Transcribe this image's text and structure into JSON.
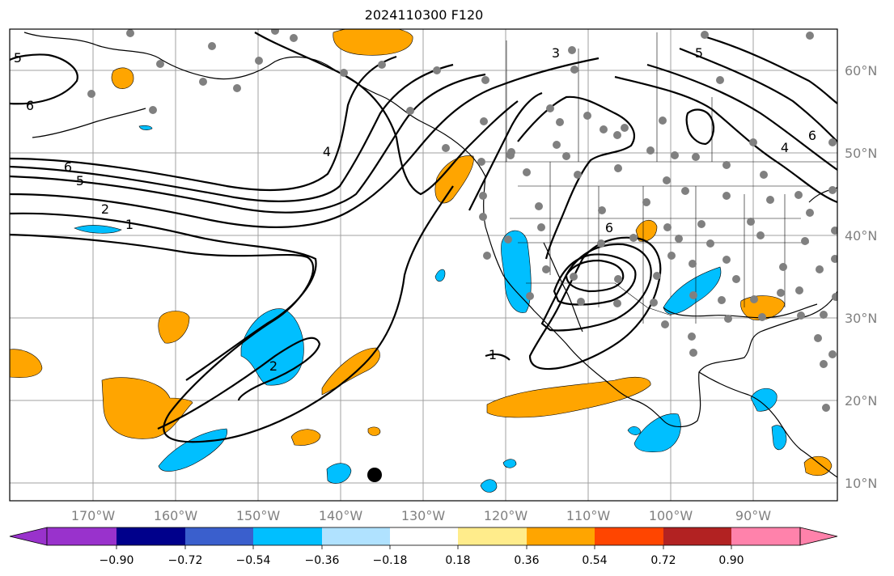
{
  "title": "2024110300 F120",
  "map": {
    "lat_labels": [
      "60°N",
      "50°N",
      "40°N",
      "30°N",
      "20°N",
      "10°N"
    ],
    "lon_labels": [
      "170°W",
      "160°W",
      "150°W",
      "140°W",
      "130°W",
      "120°W",
      "110°W",
      "100°W",
      "90°W"
    ],
    "contour_labels": [
      "5",
      "6",
      "6",
      "5",
      "2",
      "1",
      "4",
      "3",
      "5",
      "4",
      "6",
      "6",
      "2",
      "1"
    ]
  },
  "colorbar": {
    "tick_labels": [
      "−0.90",
      "−0.72",
      "−0.54",
      "−0.36",
      "−0.18",
      "0.18",
      "0.36",
      "0.54",
      "0.72",
      "0.90"
    ],
    "colors": [
      "#9932cc",
      "#00008b",
      "#3a5fcd",
      "#00bfff",
      "#b0e2ff",
      "#ffffff",
      "#ffec8b",
      "#ffa500",
      "#ff4500",
      "#b22222",
      "#ff82ab"
    ]
  },
  "colors": {
    "positive_fill": "#ffa500",
    "negative_fill": "#00bfff",
    "station_dot": "#808080",
    "gridline": "#a0a0a0"
  }
}
